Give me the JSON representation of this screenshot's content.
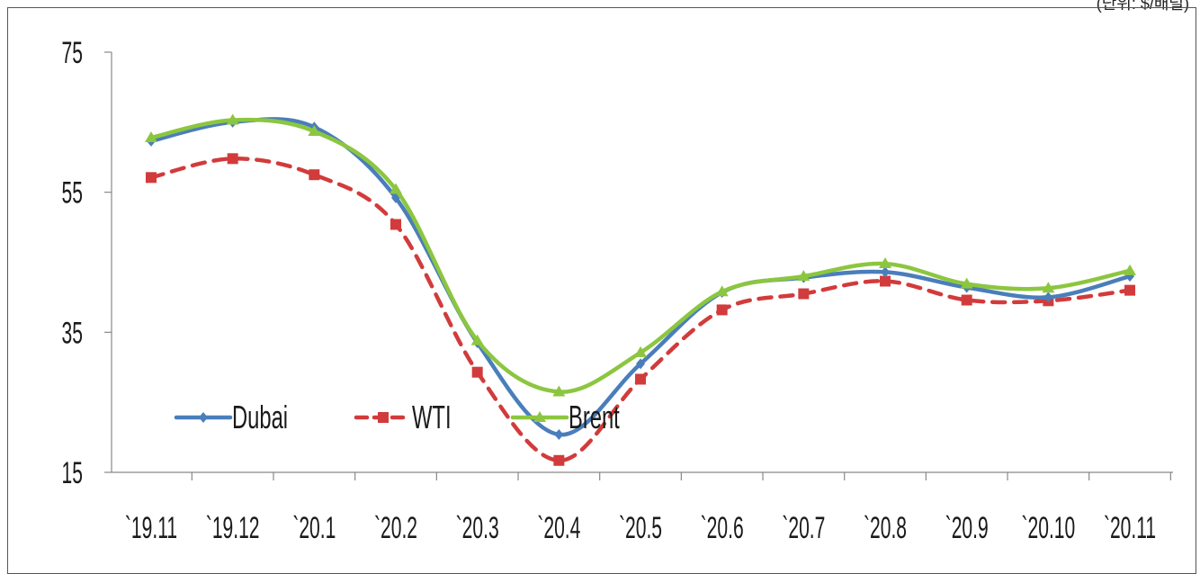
{
  "unit_note": "(단위: $/배럴)",
  "chart_data": {
    "type": "line",
    "title": "",
    "xlabel": "",
    "ylabel": "",
    "categories": [
      "`19.11",
      "`19.12",
      "`20.1",
      "`20.2",
      "`20.3",
      "`20.4",
      "`20.5",
      "`20.6",
      "`20.7",
      "`20.8",
      "`20.9",
      "`20.10",
      "`20.11"
    ],
    "y_ticks": [
      15,
      35,
      55,
      75
    ],
    "ylim": [
      15,
      75
    ],
    "grid": false,
    "legend_position": "bottom-left",
    "series": [
      {
        "name": "Dubai",
        "values": [
          62.3,
          65.0,
          64.3,
          54.2,
          33.5,
          20.4,
          30.5,
          40.7,
          42.8,
          43.6,
          41.4,
          40.0,
          43.0
        ],
        "color": "#4a7ebb",
        "marker": "diamond",
        "dash": "solid"
      },
      {
        "name": "WTI",
        "values": [
          57.1,
          59.8,
          57.5,
          50.4,
          29.3,
          16.7,
          28.3,
          38.2,
          40.5,
          42.3,
          39.6,
          39.5,
          41.0
        ],
        "color": "#d23b3b",
        "marker": "square",
        "dash": "dashed"
      },
      {
        "name": "Brent",
        "values": [
          62.8,
          65.3,
          63.7,
          55.4,
          33.8,
          26.5,
          32.1,
          40.8,
          43.0,
          44.8,
          41.9,
          41.3,
          43.8
        ],
        "color": "#8cc63f",
        "marker": "triangle",
        "dash": "solid"
      }
    ]
  }
}
